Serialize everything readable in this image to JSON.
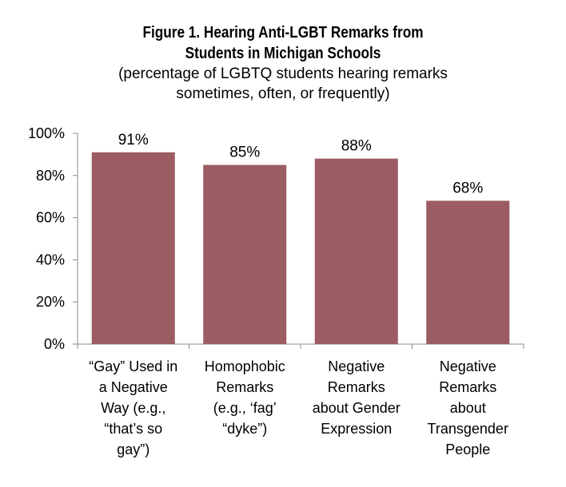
{
  "chart_data": {
    "type": "bar",
    "title_lines": [
      "Figure 1. Hearing Anti-LGBT Remarks from",
      "Students in Michigan Schools"
    ],
    "subtitle_lines": [
      "(percentage of LGBTQ students hearing remarks",
      "sometimes, often, or frequently)"
    ],
    "categories": [
      [
        "“Gay” Used in",
        "a Negative",
        "Way (e.g.,",
        "“that’s so",
        "gay”)"
      ],
      [
        "Homophobic",
        "Remarks",
        "(e.g., ‘fag’",
        "“dyke”)"
      ],
      [
        "Negative",
        "Remarks",
        "about Gender",
        "Expression"
      ],
      [
        "Negative",
        "Remarks",
        "about",
        "Transgender",
        "People"
      ]
    ],
    "values": [
      91,
      85,
      88,
      68
    ],
    "value_labels": [
      "91%",
      "85%",
      "88%",
      "68%"
    ],
    "yticks": [
      0,
      20,
      40,
      60,
      80,
      100
    ],
    "ytick_labels": [
      "0%",
      "20%",
      "40%",
      "60%",
      "80%",
      "100%"
    ],
    "ylim": [
      0,
      100
    ],
    "bar_color": "#9b5c62",
    "axis_color": "#8c8c8c",
    "grid": false
  }
}
